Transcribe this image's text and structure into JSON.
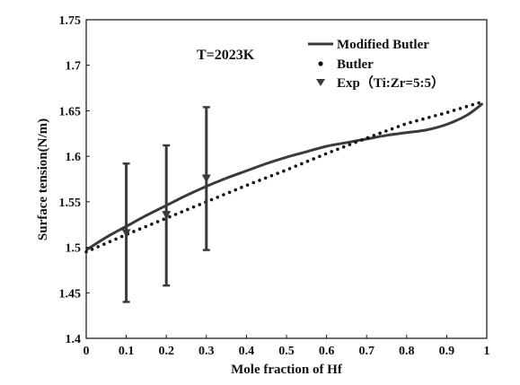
{
  "chart_data": {
    "type": "line",
    "title": "",
    "xlabel": "Mole fraction of Hf",
    "ylabel": "Surface tension(N/m)",
    "xlim": [
      0,
      1
    ],
    "ylim": [
      1.4,
      1.75
    ],
    "xticks": [
      "0",
      "0.1",
      "0.2",
      "0.3",
      "0.4",
      "0.5",
      "0.6",
      "0.7",
      "0.8",
      "0.9",
      "1"
    ],
    "yticks": [
      "1.4",
      "1.45",
      "1.5",
      "1.55",
      "1.6",
      "1.65",
      "1.7",
      "1.75"
    ],
    "grid": false,
    "legend_position": "top-right",
    "annotation": "T=2023K",
    "series": [
      {
        "name": "Modified Butler",
        "style": "solid-line",
        "color": "#3a3a3a",
        "x": [
          0,
          0.05,
          0.1,
          0.15,
          0.2,
          0.25,
          0.3,
          0.35,
          0.4,
          0.45,
          0.5,
          0.55,
          0.6,
          0.65,
          0.7,
          0.75,
          0.8,
          0.85,
          0.9,
          0.95,
          0.99
        ],
        "y": [
          1.497,
          1.511,
          1.523,
          1.535,
          1.546,
          1.557,
          1.567,
          1.576,
          1.584,
          1.592,
          1.599,
          1.605,
          1.611,
          1.615,
          1.619,
          1.623,
          1.626,
          1.629,
          1.635,
          1.645,
          1.658
        ]
      },
      {
        "name": "Butler",
        "style": "dotted",
        "color": "#111111",
        "x": [
          0,
          0.1,
          0.2,
          0.3,
          0.4,
          0.5,
          0.6,
          0.7,
          0.8,
          0.9,
          0.99
        ],
        "y": [
          1.495,
          1.514,
          1.532,
          1.55,
          1.568,
          1.585,
          1.603,
          1.62,
          1.636,
          1.648,
          1.66
        ]
      },
      {
        "name": "Exp（Ti:Zr=5:5）",
        "style": "triangle-down-errorbar",
        "color": "#3a3a3a",
        "x": [
          0.1,
          0.2,
          0.3
        ],
        "y": [
          1.515,
          1.535,
          1.575
        ],
        "err_low": [
          1.44,
          1.458,
          1.497
        ],
        "err_high": [
          1.592,
          1.612,
          1.654
        ]
      }
    ]
  }
}
